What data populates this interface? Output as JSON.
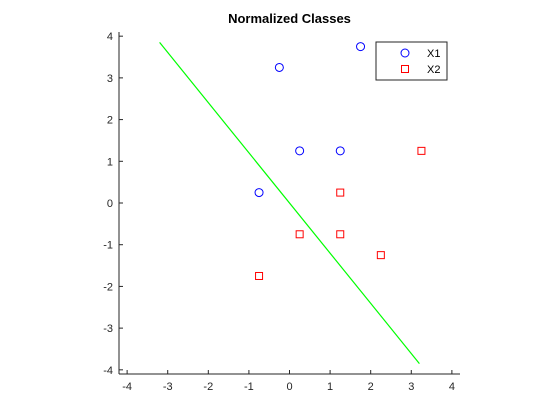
{
  "chart_data": {
    "type": "scatter",
    "title": "Normalized Classes",
    "xlabel": "",
    "ylabel": "",
    "xlim": [
      -4.2,
      4.2
    ],
    "ylim": [
      -4.1,
      4.1
    ],
    "xticks": [
      -4,
      -3,
      -2,
      -1,
      0,
      1,
      2,
      3,
      4
    ],
    "yticks": [
      -4,
      -3,
      -2,
      -1,
      0,
      1,
      2,
      3,
      4
    ],
    "grid": false,
    "legend_position": "top-right",
    "series": [
      {
        "name": "X1",
        "marker": "circle",
        "color": "#0000ff",
        "points": [
          [
            -0.75,
            0.25
          ],
          [
            -0.25,
            3.25
          ],
          [
            0.25,
            1.25
          ],
          [
            1.25,
            1.25
          ],
          [
            1.75,
            3.75
          ]
        ]
      },
      {
        "name": "X2",
        "marker": "square",
        "color": "#ff0000",
        "points": [
          [
            -0.75,
            -1.75
          ],
          [
            0.25,
            -0.75
          ],
          [
            1.25,
            0.25
          ],
          [
            1.25,
            -0.75
          ],
          [
            2.25,
            -1.25
          ],
          [
            3.25,
            1.25
          ]
        ]
      }
    ],
    "lines": [
      {
        "color": "#00ff00",
        "points": [
          [
            -3.2,
            3.85
          ],
          [
            3.2,
            -3.85
          ]
        ]
      }
    ]
  }
}
